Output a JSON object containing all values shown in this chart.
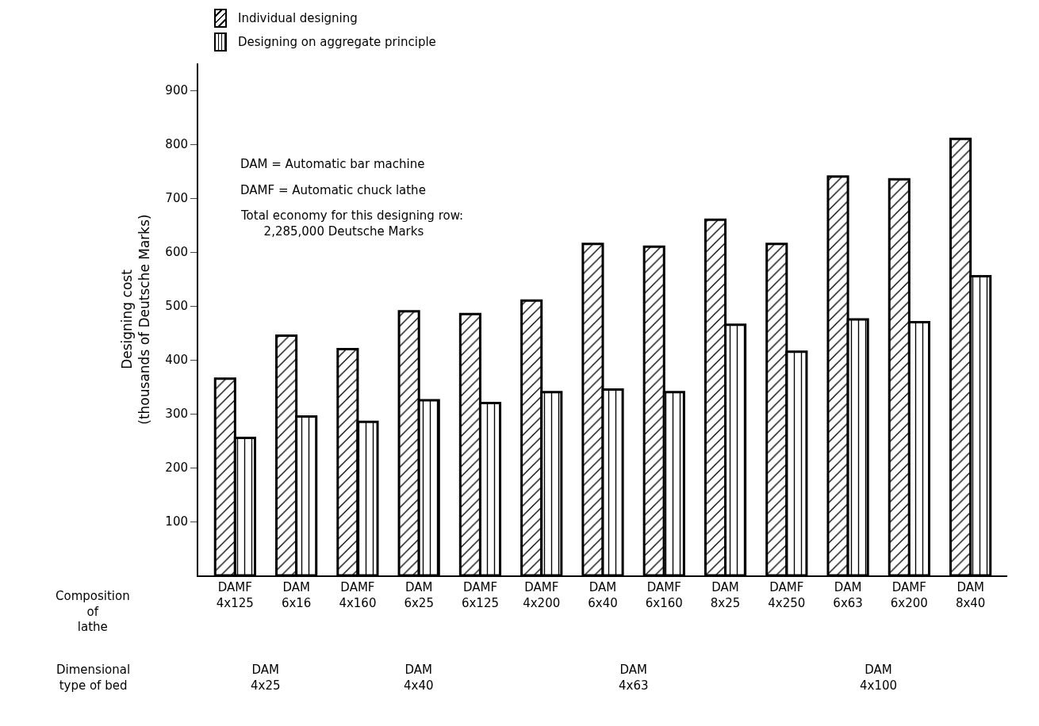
{
  "chart_data": {
    "type": "bar",
    "categories": [
      "DAMF 4x125",
      "DAM 6x16",
      "DAMF 4x160",
      "DAM 6x25",
      "DAMF 6x125",
      "DAMF 4x200",
      "DAM 6x40",
      "DAMF 6x160",
      "DAM 8x25",
      "DAMF 4x250",
      "DAM 6x63",
      "DAMF 6x200",
      "DAM 8x40"
    ],
    "series": [
      {
        "name": "Individual designing",
        "color": "#000000",
        "values": [
          365,
          445,
          420,
          490,
          485,
          510,
          615,
          610,
          660,
          615,
          740,
          735,
          810
        ]
      },
      {
        "name": "Designing on aggregate principle",
        "color": "#000000",
        "values": [
          255,
          295,
          285,
          325,
          320,
          340,
          345,
          340,
          465,
          415,
          475,
          470,
          555
        ]
      }
    ],
    "ylabel": "Designing cost (thousands of Deutsche Marks)",
    "ylim": [
      0,
      950
    ],
    "yticks": [
      100,
      200,
      300,
      400,
      500,
      600,
      700,
      800,
      900
    ],
    "grid": false,
    "legend": "top left",
    "annotations": [
      "DAM = Automatic bar machine",
      "DAMF = Automatic chuck lathe",
      "Total economy for this designing row: 2,285,000 Deutsche Marks",
      "Composition of lathe",
      "Dimensional type of bed",
      "DAM 4x25",
      "DAM 4x40",
      "DAM 4x63",
      "DAM 4x100"
    ]
  }
}
